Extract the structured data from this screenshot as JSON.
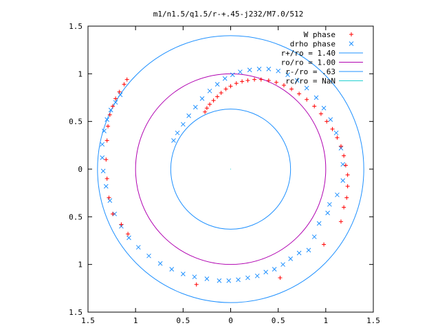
{
  "chart_data": {
    "type": "scatter",
    "title": "m1/n1.5/q1.5/r-+.45-j232/M7.0/512",
    "xlabel": "",
    "ylabel": "",
    "xlim": [
      -1.5,
      1.5
    ],
    "ylim": [
      -1.5,
      1.5
    ],
    "x_tick_values": [
      -1.5,
      -1,
      -0.5,
      0,
      0.5,
      1,
      1.5
    ],
    "x_tick_labels": [
      "1.5",
      "1",
      "0.5",
      "0",
      "0.5",
      "1",
      "1.5"
    ],
    "y_tick_values": [
      1.5,
      1,
      0.5,
      0,
      -0.5,
      -1,
      -1.5
    ],
    "y_tick_labels": [
      "1.5",
      "1",
      "0.5",
      "0",
      "0.5",
      "1",
      "1.5"
    ],
    "grid": false,
    "legend_position": "top-right",
    "series": [
      {
        "name": "W phase",
        "marker": "plus",
        "color": "#ff0000",
        "points": [
          [
            -0.27,
            0.6
          ],
          [
            -0.25,
            0.64
          ],
          [
            -0.22,
            0.68
          ],
          [
            -0.18,
            0.72
          ],
          [
            -0.14,
            0.76
          ],
          [
            -0.1,
            0.8
          ],
          [
            -0.05,
            0.84
          ],
          [
            0.0,
            0.87
          ],
          [
            0.06,
            0.9
          ],
          [
            0.12,
            0.92
          ],
          [
            0.18,
            0.93
          ],
          [
            0.25,
            0.94
          ],
          [
            0.32,
            0.94
          ],
          [
            0.4,
            0.93
          ],
          [
            0.48,
            0.91
          ],
          [
            0.56,
            0.88
          ],
          [
            0.64,
            0.84
          ],
          [
            0.72,
            0.79
          ],
          [
            0.8,
            0.73
          ],
          [
            0.88,
            0.66
          ],
          [
            0.95,
            0.58
          ],
          [
            1.01,
            0.5
          ],
          [
            1.07,
            0.42
          ],
          [
            1.12,
            0.33
          ],
          [
            1.16,
            0.24
          ],
          [
            1.19,
            0.14
          ],
          [
            1.21,
            0.04
          ],
          [
            1.23,
            -0.06
          ],
          [
            1.23,
            -0.18
          ],
          [
            1.22,
            -0.3
          ],
          [
            1.19,
            -0.4
          ],
          [
            1.16,
            -0.55
          ],
          [
            0.98,
            -0.79
          ],
          [
            0.52,
            -1.14
          ],
          [
            -0.36,
            -1.21
          ],
          [
            -1.08,
            -0.68
          ],
          [
            -1.15,
            -0.58
          ],
          [
            -1.24,
            -0.47
          ],
          [
            -1.28,
            -0.3
          ],
          [
            -1.3,
            -0.1
          ],
          [
            -1.31,
            0.1
          ],
          [
            -1.3,
            0.3
          ],
          [
            -1.29,
            0.45
          ],
          [
            -1.27,
            0.57
          ],
          [
            -1.24,
            0.66
          ],
          [
            -1.21,
            0.74
          ],
          [
            -1.17,
            0.81
          ],
          [
            -1.12,
            0.89
          ],
          [
            -1.09,
            0.94
          ]
        ]
      },
      {
        "name": "drho phase",
        "marker": "cross",
        "color": "#1e90ff",
        "points": [
          [
            -0.6,
            0.3
          ],
          [
            -0.56,
            0.38
          ],
          [
            -0.5,
            0.47
          ],
          [
            -0.44,
            0.56
          ],
          [
            -0.37,
            0.65
          ],
          [
            -0.3,
            0.74
          ],
          [
            -0.22,
            0.82
          ],
          [
            -0.14,
            0.89
          ],
          [
            -0.06,
            0.95
          ],
          [
            0.02,
            0.99
          ],
          [
            0.1,
            1.02
          ],
          [
            0.2,
            1.04
          ],
          [
            0.3,
            1.05
          ],
          [
            0.4,
            1.05
          ],
          [
            0.5,
            1.03
          ],
          [
            0.6,
            0.99
          ],
          [
            0.7,
            0.93
          ],
          [
            0.8,
            0.85
          ],
          [
            0.9,
            0.75
          ],
          [
            0.98,
            0.64
          ],
          [
            1.05,
            0.52
          ],
          [
            1.11,
            0.38
          ],
          [
            1.16,
            0.22
          ],
          [
            1.18,
            0.05
          ],
          [
            1.18,
            -0.12
          ],
          [
            1.12,
            -0.27
          ],
          [
            1.04,
            -0.37
          ],
          [
            1.02,
            -0.46
          ],
          [
            0.93,
            -0.57
          ],
          [
            0.88,
            -0.71
          ],
          [
            0.82,
            -0.85
          ],
          [
            0.72,
            -0.88
          ],
          [
            0.63,
            -0.94
          ],
          [
            0.55,
            -1.0
          ],
          [
            0.46,
            -1.05
          ],
          [
            0.37,
            -1.08
          ],
          [
            0.28,
            -1.12
          ],
          [
            0.18,
            -1.14
          ],
          [
            0.08,
            -1.16
          ],
          [
            -0.02,
            -1.17
          ],
          [
            -0.12,
            -1.17
          ],
          [
            -0.25,
            -1.15
          ],
          [
            -0.38,
            -1.13
          ],
          [
            -0.5,
            -1.1
          ],
          [
            -0.62,
            -1.05
          ],
          [
            -0.74,
            -0.99
          ],
          [
            -0.86,
            -0.91
          ],
          [
            -0.97,
            -0.82
          ],
          [
            -1.07,
            -0.72
          ],
          [
            -1.15,
            -0.6
          ],
          [
            -1.22,
            -0.47
          ],
          [
            -1.27,
            -0.33
          ],
          [
            -1.31,
            -0.18
          ],
          [
            -1.34,
            -0.02
          ],
          [
            -1.35,
            0.12
          ],
          [
            -1.35,
            0.26
          ],
          [
            -1.33,
            0.4
          ],
          [
            -1.3,
            0.52
          ],
          [
            -1.26,
            0.62
          ],
          [
            -1.21,
            0.7
          ],
          [
            -1.16,
            0.78
          ]
        ]
      }
    ],
    "circles": [
      {
        "name": "r+/ro = 1.40",
        "radius": 1.4,
        "color": "#1e90ff"
      },
      {
        "name": "ro/ro = 1.00",
        "radius": 1.0,
        "color": "#b000b0"
      },
      {
        "name": "r-/ro = .63",
        "radius": 0.63,
        "color": "#1e90ff"
      },
      {
        "name": "rc/ro = NaN",
        "radius": null,
        "color": "#20d0d0"
      }
    ]
  }
}
